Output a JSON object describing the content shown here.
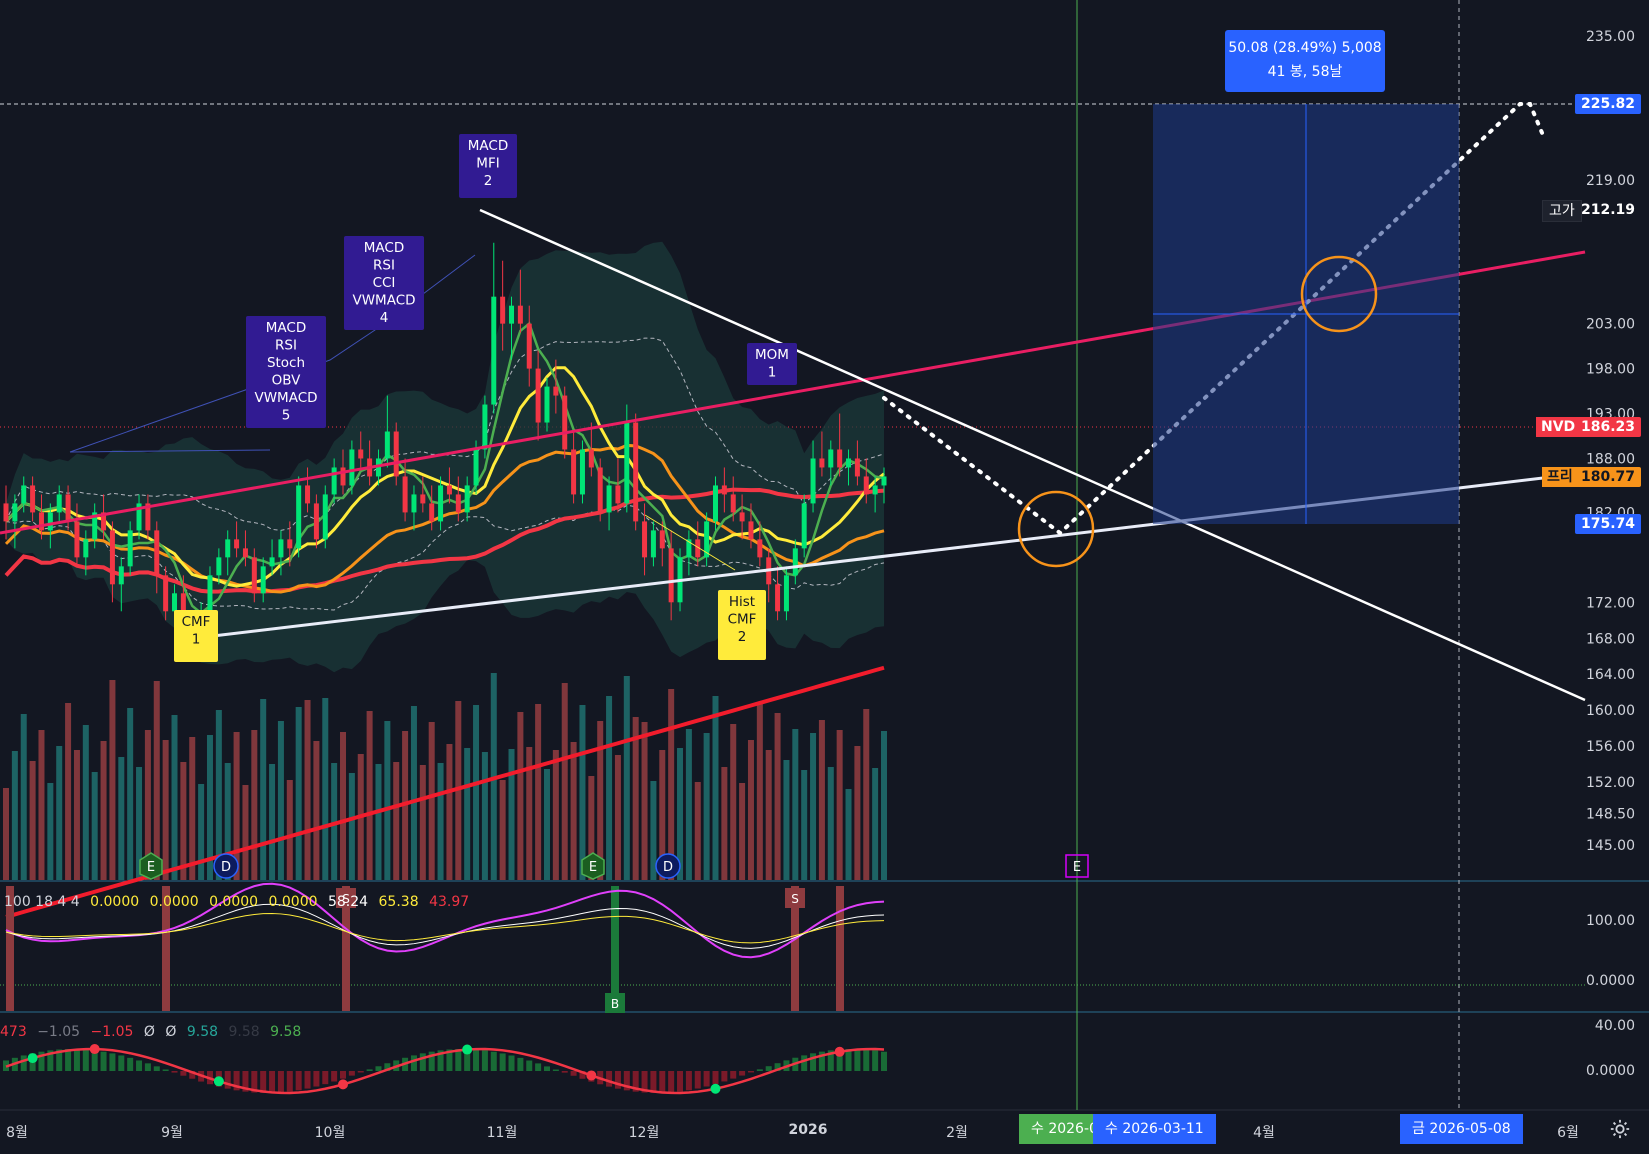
{
  "chart_data": {
    "type": "candlestick",
    "symbol": "NVDA",
    "price_axis": [
      "235.00",
      "225.82",
      "219.00",
      "212.19",
      "203.00",
      "198.00",
      "193.00",
      "188.00",
      "186.23",
      "182.00",
      "180.77",
      "175.74",
      "172.00",
      "168.00",
      "164.00",
      "160.00",
      "156.00",
      "152.00",
      "148.50",
      "145.00"
    ],
    "price_ticks": [
      {
        "label": "235.00",
        "v": 235
      },
      {
        "label": "219.00",
        "v": 219
      },
      {
        "label": "203.00",
        "v": 203
      },
      {
        "label": "198.00",
        "v": 198
      },
      {
        "label": "193.00",
        "v": 193
      },
      {
        "label": "188.00",
        "v": 188
      },
      {
        "label": "182.00",
        "v": 182
      },
      {
        "label": "172.00",
        "v": 172
      },
      {
        "label": "168.00",
        "v": 168
      },
      {
        "label": "164.00",
        "v": 164
      },
      {
        "label": "160.00",
        "v": 160
      },
      {
        "label": "156.00",
        "v": 156
      },
      {
        "label": "152.00",
        "v": 152
      },
      {
        "label": "148.50",
        "v": 148.5
      },
      {
        "label": "145.00",
        "v": 145
      }
    ],
    "time_labels": [
      "8월",
      "9월",
      "10월",
      "11월",
      "12월",
      "2026",
      "2월",
      "4월",
      "6월"
    ],
    "price_tags": {
      "last": {
        "label": "NVDA",
        "value": "186.23",
        "color": "#f23645"
      },
      "target": {
        "value": "225.82",
        "color": "#2962ff"
      },
      "high": {
        "label": "고가",
        "value": "212.19"
      },
      "pre": {
        "label": "프리",
        "value": "180.77",
        "color": "#f7931a"
      },
      "stop": {
        "value": "175.74",
        "color": "#2962ff"
      }
    },
    "measure": {
      "line1": "50.08 (28.49%) 5,008",
      "line2": "41 봉, 58날"
    },
    "date_tags": [
      "수 2026-0",
      "수 2026-03-11",
      "금 2026-05-08"
    ],
    "signals": [
      {
        "lines": [
          "CMF",
          "1"
        ],
        "color": "#ffeb3b",
        "text_color": "#131722"
      },
      {
        "lines": [
          "MACD",
          "RSI",
          "Stoch",
          "OBV",
          "VWMACD",
          "5"
        ],
        "color": "#311b92",
        "text_color": "#ffffff"
      },
      {
        "lines": [
          "MACD",
          "RSI",
          "CCI",
          "VWMACD",
          "4"
        ],
        "color": "#311b92",
        "text_color": "#ffffff"
      },
      {
        "lines": [
          "MACD",
          "MFI",
          "2"
        ],
        "color": "#311b92",
        "text_color": "#ffffff"
      },
      {
        "lines": [
          "Hist",
          "CMF",
          "2"
        ],
        "color": "#ffeb3b",
        "text_color": "#131722"
      },
      {
        "lines": [
          "MOM",
          "1"
        ],
        "color": "#311b92",
        "text_color": "#ffffff"
      }
    ],
    "event_markers": [
      "E",
      "D",
      "E",
      "D",
      "E"
    ],
    "osc1": {
      "legend": [
        "100 18 4 4",
        "0.0000",
        "0.0000",
        "0.0000",
        "0.0000",
        "58.24",
        "65.38",
        "43.97"
      ],
      "axis": [
        "100.00",
        "0.0000"
      ],
      "signal_labels": [
        "S",
        "B",
        "S"
      ]
    },
    "osc2": {
      "legend": [
        "473",
        "−1.05",
        "−1.05",
        "Ø",
        "Ø",
        "9.58",
        "9.58",
        "9.58"
      ],
      "axis": [
        "40.00",
        "0.0000"
      ]
    },
    "candles": [
      [
        183,
        185,
        179,
        181
      ],
      [
        181,
        184,
        178,
        183
      ],
      [
        183,
        186,
        182,
        185
      ],
      [
        185,
        186,
        181,
        182
      ],
      [
        182,
        184,
        179,
        180
      ],
      [
        180,
        183,
        178,
        182
      ],
      [
        182,
        185,
        181,
        184
      ],
      [
        184,
        185,
        180,
        181
      ],
      [
        181,
        183,
        176,
        177
      ],
      [
        177,
        180,
        175,
        179
      ],
      [
        179,
        183,
        178,
        182
      ],
      [
        182,
        184,
        179,
        180
      ],
      [
        180,
        181,
        172,
        174
      ],
      [
        174,
        177,
        171,
        176
      ],
      [
        176,
        181,
        175,
        180
      ],
      [
        180,
        184,
        179,
        183
      ],
      [
        183,
        184,
        179,
        180
      ],
      [
        180,
        181,
        173,
        175
      ],
      [
        175,
        176,
        170,
        171
      ],
      [
        171,
        174,
        170,
        173
      ],
      [
        173,
        175,
        168,
        170
      ],
      [
        170,
        171,
        167,
        169
      ],
      [
        169,
        172,
        168,
        171
      ],
      [
        171,
        176,
        170,
        175
      ],
      [
        175,
        178,
        174,
        177
      ],
      [
        177,
        180,
        175,
        179
      ],
      [
        179,
        181,
        177,
        178
      ],
      [
        178,
        180,
        176,
        177
      ],
      [
        177,
        178,
        172,
        173
      ],
      [
        173,
        177,
        172,
        176
      ],
      [
        176,
        179,
        175,
        177
      ],
      [
        177,
        180,
        175,
        179
      ],
      [
        179,
        181,
        176,
        178
      ],
      [
        178,
        186,
        177,
        185
      ],
      [
        185,
        187,
        182,
        183
      ],
      [
        183,
        184,
        178,
        179
      ],
      [
        179,
        185,
        178,
        184
      ],
      [
        184,
        188,
        183,
        187
      ],
      [
        187,
        189,
        184,
        185
      ],
      [
        185,
        190,
        184,
        189
      ],
      [
        189,
        191,
        187,
        188
      ],
      [
        188,
        190,
        185,
        186
      ],
      [
        186,
        189,
        185,
        188
      ],
      [
        188,
        195,
        187,
        191
      ],
      [
        191,
        192,
        185,
        186
      ],
      [
        186,
        188,
        181,
        182
      ],
      [
        182,
        185,
        180,
        184
      ],
      [
        184,
        186,
        182,
        183
      ],
      [
        183,
        185,
        180,
        181
      ],
      [
        181,
        186,
        180,
        185
      ],
      [
        185,
        187,
        183,
        184
      ],
      [
        184,
        186,
        181,
        182
      ],
      [
        182,
        186,
        181,
        185
      ],
      [
        185,
        190,
        184,
        189
      ],
      [
        189,
        195,
        188,
        194
      ],
      [
        194,
        212,
        193,
        206
      ],
      [
        206,
        210,
        200,
        203
      ],
      [
        203,
        206,
        199,
        205
      ],
      [
        205,
        209,
        202,
        203
      ],
      [
        203,
        205,
        196,
        198
      ],
      [
        198,
        200,
        190,
        192
      ],
      [
        192,
        197,
        191,
        196
      ],
      [
        196,
        199,
        193,
        195
      ],
      [
        195,
        196,
        188,
        189
      ],
      [
        189,
        191,
        183,
        184
      ],
      [
        184,
        190,
        183,
        189
      ],
      [
        189,
        192,
        186,
        187
      ],
      [
        187,
        188,
        181,
        182
      ],
      [
        182,
        186,
        180,
        185
      ],
      [
        185,
        188,
        182,
        183
      ],
      [
        183,
        194,
        182,
        192
      ],
      [
        192,
        193,
        180,
        181
      ],
      [
        181,
        183,
        175,
        177
      ],
      [
        177,
        181,
        176,
        180
      ],
      [
        180,
        181,
        176,
        178
      ],
      [
        178,
        180,
        170,
        172
      ],
      [
        172,
        178,
        171,
        177
      ],
      [
        177,
        180,
        175,
        179
      ],
      [
        179,
        181,
        176,
        177
      ],
      [
        177,
        182,
        176,
        181
      ],
      [
        181,
        186,
        180,
        185
      ],
      [
        185,
        187,
        182,
        184
      ],
      [
        184,
        186,
        181,
        182
      ],
      [
        182,
        184,
        179,
        181
      ],
      [
        181,
        183,
        178,
        179
      ],
      [
        179,
        181,
        176,
        177
      ],
      [
        177,
        178,
        172,
        174
      ],
      [
        174,
        176,
        170,
        171
      ],
      [
        171,
        176,
        170,
        175
      ],
      [
        175,
        179,
        174,
        178
      ],
      [
        178,
        184,
        177,
        183
      ],
      [
        183,
        190,
        182,
        188
      ],
      [
        188,
        191,
        186,
        187
      ],
      [
        187,
        190,
        185,
        189
      ],
      [
        189,
        193,
        186,
        187
      ],
      [
        187,
        189,
        185,
        188
      ],
      [
        188,
        190,
        185,
        186
      ],
      [
        186,
        188,
        183,
        184
      ],
      [
        184,
        186,
        182,
        185
      ],
      [
        185,
        187,
        183,
        186
      ]
    ]
  }
}
